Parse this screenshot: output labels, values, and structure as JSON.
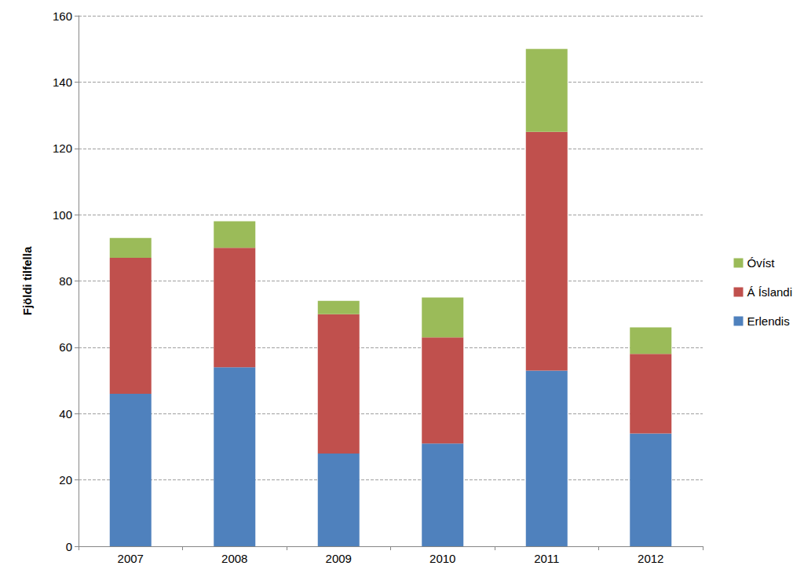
{
  "chart_data": {
    "type": "bar",
    "stacked": true,
    "grid": true,
    "legend": "right",
    "y_label": "Fjöldi tilfella",
    "categories": [
      "2007",
      "2008",
      "2009",
      "2010",
      "2011",
      "2012"
    ],
    "series": [
      {
        "name": "Erlendis",
        "color": "#4f81bd",
        "values": [
          46,
          54,
          28,
          31,
          53,
          34
        ]
      },
      {
        "name": "Á Íslandi",
        "color": "#c0504d",
        "values": [
          41,
          36,
          42,
          32,
          72,
          24
        ]
      },
      {
        "name": "Óvíst",
        "color": "#9bbb59",
        "values": [
          6,
          8,
          4,
          12,
          25,
          8
        ]
      }
    ],
    "ylim": [
      0,
      160
    ],
    "yticks": [
      0,
      20,
      40,
      60,
      80,
      100,
      120,
      140,
      160
    ]
  }
}
